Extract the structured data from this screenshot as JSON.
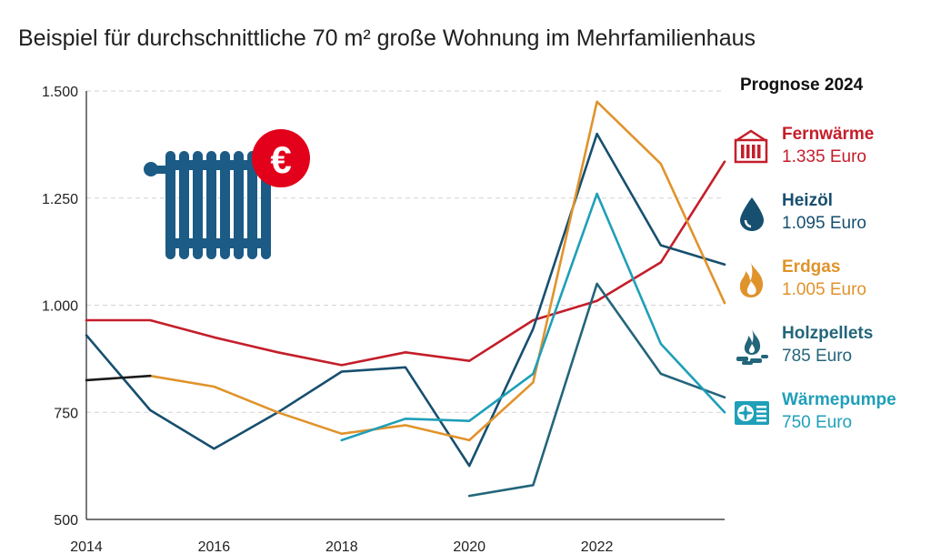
{
  "header": {
    "title": "Beispiel für durchschnittliche 70 m² große Wohnung im Mehrfamilienhaus"
  },
  "legend": {
    "heading": "Prognose 2024",
    "items": [
      {
        "name": "Fernwärme",
        "value": "1.335 Euro",
        "color": "#c41e2a",
        "icon": "radiator-heat-icon"
      },
      {
        "name": "Heizöl",
        "value": "1.095 Euro",
        "color": "#174f6f",
        "icon": "oil-drop-icon"
      },
      {
        "name": "Erdgas",
        "value": "1.005 Euro",
        "color": "#e0932b",
        "icon": "gas-flame-icon"
      },
      {
        "name": "Holzpellets",
        "value": "785 Euro",
        "color": "#23657a",
        "icon": "wood-fire-icon"
      },
      {
        "name": "Wärmepumpe",
        "value": "750 Euro",
        "color": "#1f9fb8",
        "icon": "heat-pump-icon"
      }
    ]
  },
  "illustration": {
    "icon": "radiator-euro-icon",
    "badge": "€",
    "badge_color": "#e2001a",
    "body_color": "#1b5b86"
  },
  "chart_data": {
    "type": "line",
    "ylim": [
      500,
      1500
    ],
    "xlim": [
      2014,
      2024
    ],
    "yticks": [
      500,
      750,
      1000,
      1250,
      1500
    ],
    "ytick_labels": [
      "500",
      "750",
      "1.000",
      "1.250",
      "1.500"
    ],
    "xticks": [
      2014,
      2016,
      2018,
      2020,
      2022
    ],
    "xtick_labels": [
      "2014",
      "2016",
      "2018",
      "2020",
      "2022"
    ],
    "grid": "horizontal dashed",
    "legend_placement": "right",
    "series": [
      {
        "name": "Fernwärme",
        "color": "#c41e2a",
        "points": [
          [
            2014,
            965
          ],
          [
            2015,
            965
          ],
          [
            2016,
            925
          ],
          [
            2017,
            890
          ],
          [
            2018,
            860
          ],
          [
            2019,
            890
          ],
          [
            2020,
            870
          ],
          [
            2021,
            965
          ],
          [
            2022,
            1010
          ],
          [
            2023,
            1100
          ],
          [
            2024,
            1335
          ]
        ]
      },
      {
        "name": "Heizöl",
        "color": "#174f6f",
        "points": [
          [
            2014,
            930
          ],
          [
            2015,
            755
          ],
          [
            2016,
            665
          ],
          [
            2017,
            750
          ],
          [
            2018,
            845
          ],
          [
            2019,
            855
          ],
          [
            2020,
            625
          ],
          [
            2021,
            945
          ],
          [
            2022,
            1400
          ],
          [
            2023,
            1140
          ],
          [
            2024,
            1095
          ]
        ]
      },
      {
        "name": "Erdgas",
        "color": "#e0932b",
        "points": [
          [
            2015,
            835
          ],
          [
            2016,
            810
          ],
          [
            2017,
            750
          ],
          [
            2018,
            700
          ],
          [
            2019,
            720
          ],
          [
            2020,
            685
          ],
          [
            2021,
            820
          ],
          [
            2022,
            1475
          ],
          [
            2023,
            1330
          ],
          [
            2024,
            1005
          ]
        ]
      },
      {
        "name": "Holzpellets",
        "color": "#23657a",
        "points": [
          [
            2020,
            555
          ],
          [
            2021,
            580
          ],
          [
            2022,
            1050
          ],
          [
            2023,
            840
          ],
          [
            2024,
            785
          ]
        ]
      },
      {
        "name": "Wärmepumpe",
        "color": "#1f9fb8",
        "points": [
          [
            2018,
            685
          ],
          [
            2019,
            735
          ],
          [
            2020,
            730
          ],
          [
            2021,
            840
          ],
          [
            2022,
            1260
          ],
          [
            2023,
            910
          ],
          [
            2024,
            750
          ]
        ]
      },
      {
        "color": "#1a1a1a",
        "points": [
          [
            2014,
            825
          ],
          [
            2015,
            835
          ]
        ]
      }
    ]
  }
}
